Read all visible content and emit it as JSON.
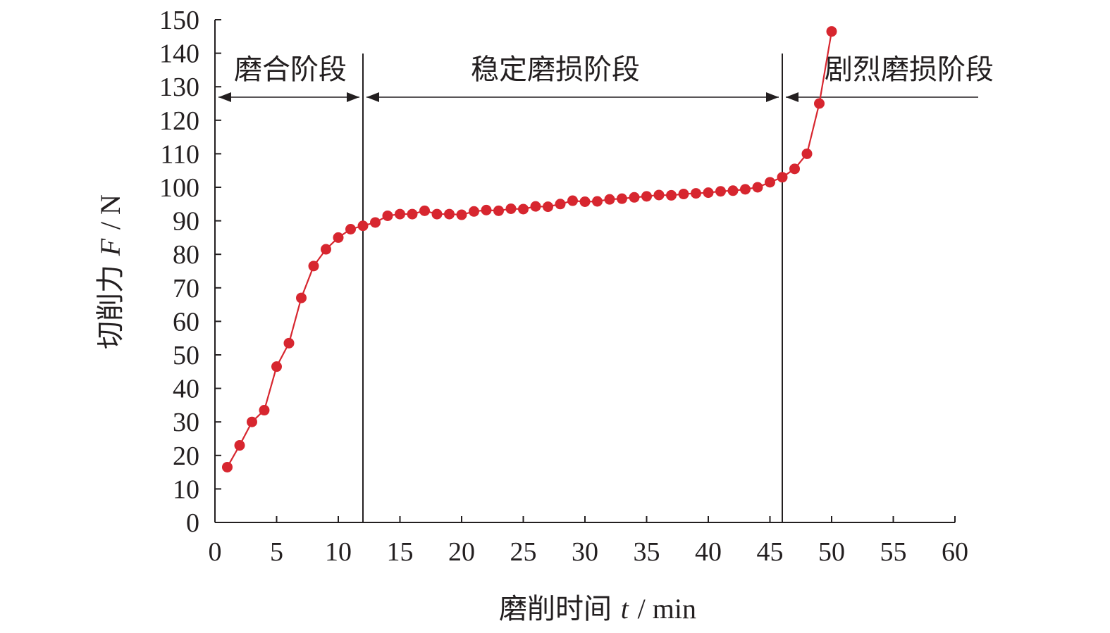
{
  "chart_data": {
    "type": "line",
    "title": "",
    "xlabel": {
      "text": "磨削时间",
      "symbol": "t",
      "unit": "/ min"
    },
    "ylabel": {
      "text": "切削力",
      "symbol": "F",
      "unit": "/ N"
    },
    "xlim": [
      0,
      60
    ],
    "ylim": [
      0,
      150
    ],
    "x_ticks": [
      0,
      5,
      10,
      15,
      20,
      25,
      30,
      35,
      40,
      45,
      50,
      55,
      60
    ],
    "y_ticks": [
      0,
      10,
      20,
      30,
      40,
      50,
      60,
      70,
      80,
      90,
      100,
      110,
      120,
      130,
      140,
      150
    ],
    "grid": false,
    "legend": "none",
    "series": [
      {
        "color": "#d7262f",
        "marker": "circle",
        "x": [
          1,
          2,
          3,
          4,
          5,
          6,
          7,
          8,
          9,
          10,
          11,
          12,
          13,
          14,
          15,
          16,
          17,
          18,
          19,
          20,
          21,
          22,
          23,
          24,
          25,
          26,
          27,
          28,
          29,
          30,
          31,
          32,
          33,
          34,
          35,
          36,
          37,
          38,
          39,
          40,
          41,
          42,
          43,
          44,
          45,
          46,
          47,
          48,
          49,
          50
        ],
        "y": [
          16.5,
          23,
          30,
          33.5,
          46.5,
          53.5,
          67,
          76.5,
          81.5,
          85,
          87.5,
          88.5,
          89.5,
          91.5,
          92,
          92,
          93,
          92,
          92,
          91.8,
          92.8,
          93.2,
          93,
          93.6,
          93.5,
          94.3,
          94.2,
          95,
          96,
          95.7,
          95.8,
          96.4,
          96.6,
          97,
          97.3,
          97.7,
          97.6,
          98,
          98.2,
          98.4,
          98.8,
          99,
          99.4,
          100,
          101.5,
          103,
          105.5,
          110,
          125,
          146.5
        ]
      }
    ],
    "stage_boundaries_x": [
      12,
      46
    ],
    "stages": [
      {
        "label": "磨合阶段",
        "from": 0,
        "to": 12
      },
      {
        "label": "稳定磨损阶段",
        "from": 12,
        "to": 46
      },
      {
        "label": "剧烈磨损阶段",
        "from": 46,
        "to": 50
      }
    ]
  }
}
